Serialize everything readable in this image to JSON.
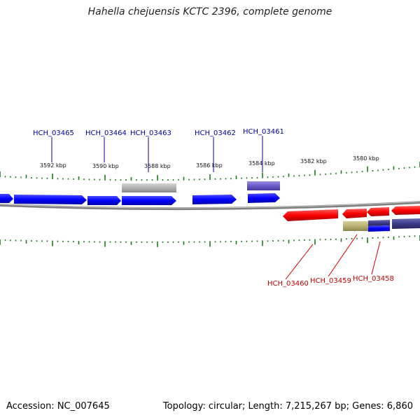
{
  "title": "Hahella chejuensis KCTC 2396, complete genome",
  "footer": {
    "accession": "Accession: NC_007645",
    "summary": "Topology: circular; Length: 7,215,267 bp; Genes: 6,860"
  },
  "colors": {
    "forward": "#0000ff",
    "reverse": "#ff0000",
    "pseudo": "#b0b0b0",
    "highlight_forward": "#6a5acd",
    "highlight_reverse": "#b8b070",
    "backbone": "#808080",
    "tick": "#1a7a1a",
    "forward_label": "#00009c",
    "reverse_label": "#c00000"
  },
  "ticks": [
    {
      "label": "3592 kbp"
    },
    {
      "label": "3590 kbp"
    },
    {
      "label": "3588 kbp"
    },
    {
      "label": "3586 kbp"
    },
    {
      "label": "3584 kbp"
    },
    {
      "label": "3582 kbp"
    },
    {
      "label": "3580 kbp"
    }
  ],
  "forward_labels": [
    {
      "text": "HCH_03465"
    },
    {
      "text": "HCH_03464"
    },
    {
      "text": "HCH_03463"
    },
    {
      "text": "HCH_03462"
    },
    {
      "text": "HCH_03461"
    }
  ],
  "reverse_labels": [
    {
      "text": "HCH_03460"
    },
    {
      "text": "HCH_03459"
    },
    {
      "text": "HCH_03458"
    }
  ]
}
